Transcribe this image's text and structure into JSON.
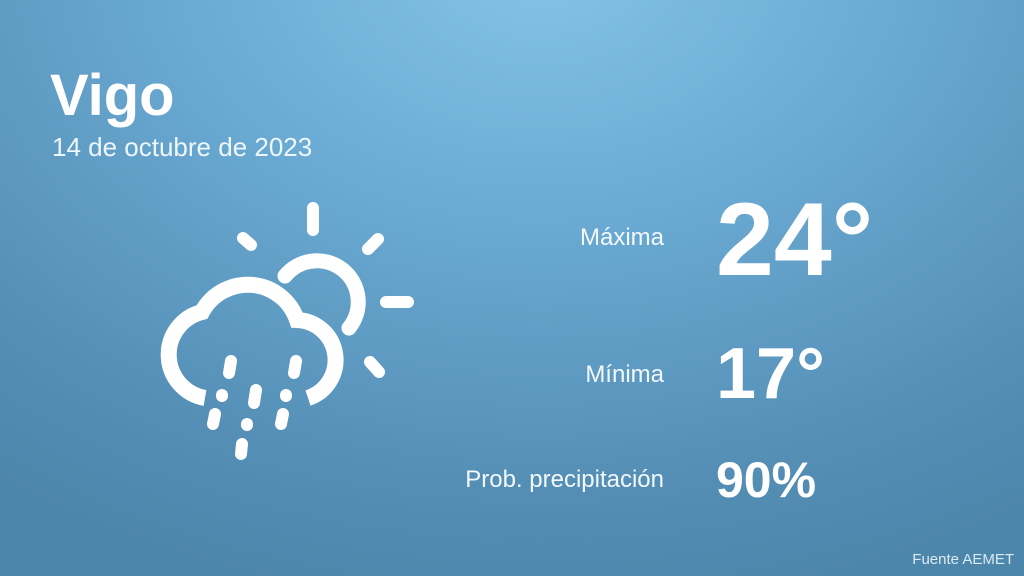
{
  "location": {
    "city": "Vigo",
    "date": "14 de octubre de 2023"
  },
  "weather": {
    "icon": "cloud-sun-rain-icon",
    "max_label": "Máxima",
    "max_value": "24°",
    "min_label": "Mínima",
    "min_value": "17°",
    "precip_label": "Prob. precipitación",
    "precip_value": "90%"
  },
  "footer": {
    "source": "Fuente AEMET"
  },
  "colors": {
    "background_top": "#86c4e8",
    "background_bottom": "#4d86ab",
    "text": "#ffffff"
  }
}
